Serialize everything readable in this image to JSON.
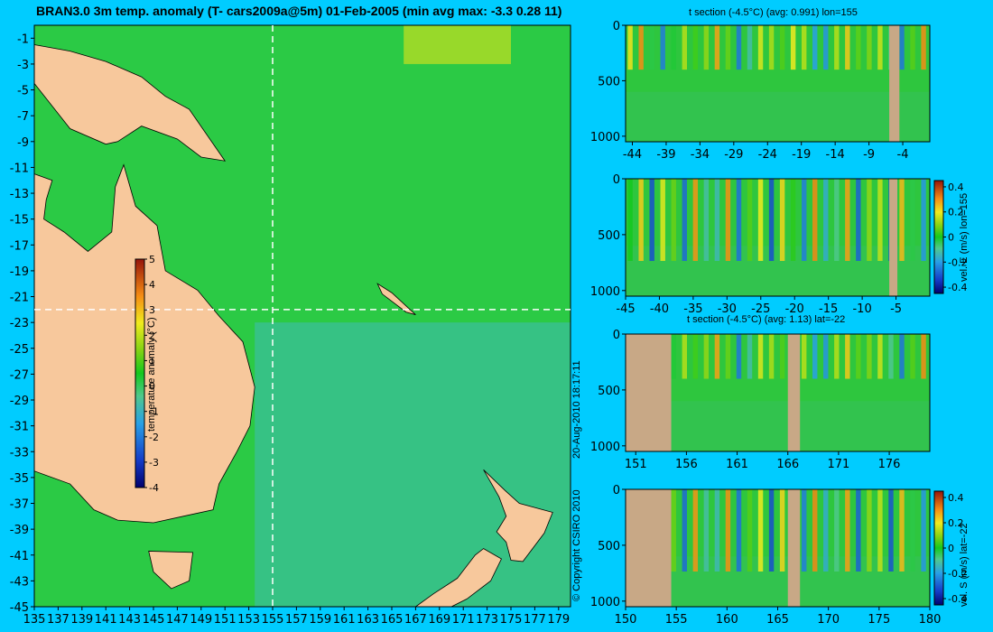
{
  "main_title": "BRAN3.0 3m temp. anomaly (T- cars2009a@5m) 01-Feb-2005 (min avg max: -3.3 0.28 11)",
  "copyright": "© Copyright CSIRO 2010",
  "timestamp": "20-Aug-2010 18:17:11",
  "colors": {
    "background": "#00ccff",
    "land": "#f7c89c",
    "section_land": "#c8a886",
    "crosshair": "#ffffff"
  },
  "chart_data": [
    {
      "type": "heatmap",
      "title": "BRAN3.0 3m temp. anomaly (T- cars2009a@5m) 01-Feb-2005 (min avg max: -3.3 0.28 11)",
      "x_ticks": [
        "135",
        "137",
        "139",
        "141",
        "143",
        "145",
        "147",
        "149",
        "151",
        "153",
        "155",
        "157",
        "159",
        "161",
        "163",
        "165",
        "167",
        "169",
        "171",
        "173",
        "175",
        "177",
        "179"
      ],
      "y_ticks": [
        "-1",
        "-3",
        "-5",
        "-7",
        "-9",
        "-11",
        "-13",
        "-15",
        "-17",
        "-19",
        "-21",
        "-23",
        "-25",
        "-27",
        "-29",
        "-31",
        "-33",
        "-35",
        "-37",
        "-39",
        "-41",
        "-43",
        "-45"
      ],
      "xlim": [
        135,
        180
      ],
      "ylim": [
        -45,
        0
      ],
      "crosshair": {
        "lon": 155,
        "lat": -22
      },
      "colorbar": {
        "label": "temperature anomaly (°C)",
        "ticks": [
          "5",
          "4",
          "3",
          "2",
          "1",
          "0",
          "-1",
          "-2",
          "-3",
          "-4"
        ],
        "range": [
          -4,
          5
        ]
      }
    },
    {
      "type": "heatmap",
      "title": "t section (-4.5°C) (avg: 0.991) lon=155",
      "x_ticks": [
        "-44",
        "-39",
        "-34",
        "-29",
        "-24",
        "-19",
        "-14",
        "-9",
        "-4"
      ],
      "y_ticks": [
        "0",
        "500",
        "1000"
      ],
      "xlim": [
        -45,
        0
      ],
      "ylim": [
        1050,
        0
      ]
    },
    {
      "type": "heatmap",
      "title": "",
      "x_ticks": [
        "-45",
        "-40",
        "-35",
        "-30",
        "-25",
        "-20",
        "-15",
        "-10",
        "-5"
      ],
      "y_ticks": [
        "0",
        "500",
        "1000"
      ],
      "xlim": [
        -45,
        0
      ],
      "ylim": [
        1050,
        0
      ],
      "colorbar": {
        "label": "vel. E (m/s) lon=155",
        "ticks": [
          "0.4",
          "0.2",
          "0",
          "-0.2",
          "-0.4"
        ],
        "range": [
          -0.45,
          0.45
        ]
      }
    },
    {
      "type": "heatmap",
      "title": "t section (-4.5°C) (avg: 1.13) lat=-22",
      "x_ticks": [
        "151",
        "156",
        "161",
        "166",
        "171",
        "176"
      ],
      "y_ticks": [
        "0",
        "500",
        "1000"
      ],
      "xlim": [
        150,
        180
      ],
      "ylim": [
        1050,
        0
      ]
    },
    {
      "type": "heatmap",
      "title": "",
      "x_ticks": [
        "150",
        "155",
        "160",
        "165",
        "170",
        "175",
        "180"
      ],
      "y_ticks": [
        "0",
        "500",
        "1000"
      ],
      "xlim": [
        150,
        180
      ],
      "ylim": [
        1050,
        0
      ],
      "colorbar": {
        "label": "vel. S (m/s) lat=-22",
        "ticks": [
          "0.4",
          "0.2",
          "0",
          "-0.2",
          "-0.4"
        ],
        "range": [
          -0.45,
          0.45
        ]
      }
    }
  ]
}
